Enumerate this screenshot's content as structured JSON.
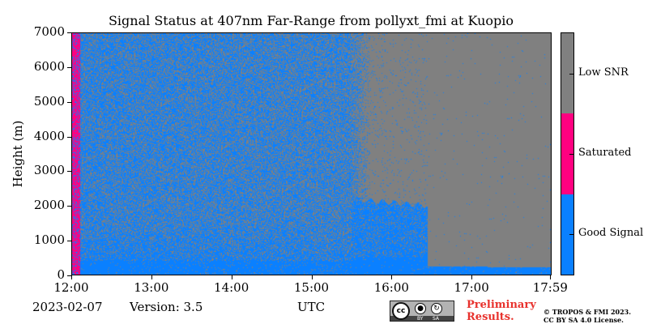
{
  "chart_data": {
    "type": "heatmap",
    "title": "Signal Status at 407nm Far-Range from pollyxt_fmi at Kuopio",
    "xlabel": "UTC",
    "ylabel": "Height (m)",
    "x_range": [
      "12:00",
      "17:59"
    ],
    "ylim": [
      0,
      7000
    ],
    "x_ticks": [
      "12:00",
      "13:00",
      "14:00",
      "15:00",
      "16:00",
      "17:00",
      "17:59"
    ],
    "y_ticks": [
      "0",
      "1000",
      "2000",
      "3000",
      "4000",
      "5000",
      "6000",
      "7000"
    ],
    "categories": [
      {
        "label": "Good Signal",
        "color": "#0a80ff"
      },
      {
        "label": "Saturated",
        "color": "#ff0080"
      },
      {
        "label": "Low SNR",
        "color": "#808080"
      }
    ],
    "regions": [
      {
        "from_hour": 12.0,
        "to_hour": 12.1,
        "from_m": 0,
        "to_m": 7000,
        "status": "Saturated"
      },
      {
        "from_hour": 12.1,
        "to_hour": 15.5,
        "from_m": 0,
        "to_m": 7000,
        "status": "Good Signal / Low SNR mixed"
      },
      {
        "from_hour": 15.5,
        "to_hour": 16.45,
        "from_m": 0,
        "to_m": 2200,
        "status": "Good Signal"
      },
      {
        "from_hour": 15.5,
        "to_hour": 17.99,
        "from_m": 2200,
        "to_m": 7000,
        "status": "Low SNR"
      },
      {
        "from_hour": 16.45,
        "to_hour": 17.99,
        "from_m": 0,
        "to_m": 250,
        "status": "Good Signal"
      },
      {
        "from_hour": 16.45,
        "to_hour": 17.99,
        "from_m": 250,
        "to_m": 7000,
        "status": "Low SNR"
      }
    ]
  },
  "footer": {
    "date": "2023-02-07",
    "version": "Version: 3.5",
    "preliminary_line1": "Preliminary",
    "preliminary_line2": "Results.",
    "license_line1": "© TROPOS & FMI 2023.",
    "license_line2": "CC BY SA 4.0 License."
  },
  "cc_badge": {
    "cc": "cc",
    "by": "BY",
    "sa": "SA",
    "icon": "creative-commons-icon"
  }
}
